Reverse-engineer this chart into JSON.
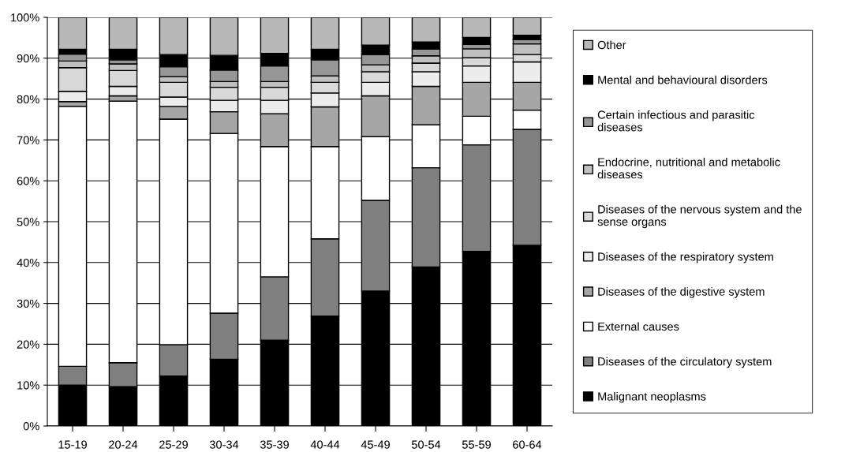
{
  "chart_data": {
    "type": "bar",
    "stacked": true,
    "categories": [
      "15-19",
      "20-24",
      "25-29",
      "30-34",
      "35-39",
      "40-44",
      "45-49",
      "50-54",
      "55-59",
      "60-64"
    ],
    "series": [
      {
        "name": "Malignant neoplasms",
        "color": "#000000",
        "values": [
          10.0,
          9.6,
          12.2,
          16.3,
          21.0,
          26.9,
          33.0,
          38.9,
          42.7,
          44.2
        ]
      },
      {
        "name": "Diseases of the circulatory system",
        "color": "#808080",
        "values": [
          4.6,
          5.9,
          7.7,
          11.3,
          15.5,
          18.9,
          22.2,
          24.3,
          26.1,
          28.4
        ]
      },
      {
        "name": "External causes",
        "color": "#ffffff",
        "values": [
          63.6,
          64.0,
          55.2,
          44.0,
          31.9,
          22.6,
          15.6,
          10.5,
          7.0,
          4.7
        ]
      },
      {
        "name": "Diseases of the digestive system",
        "color": "#a6a6a6",
        "values": [
          1.2,
          1.3,
          3.1,
          5.3,
          8.0,
          9.7,
          10.0,
          9.4,
          8.3,
          6.8
        ]
      },
      {
        "name": "Diseases of the respiratory system",
        "color": "#ececec",
        "values": [
          2.5,
          2.3,
          2.3,
          2.8,
          3.3,
          3.4,
          3.3,
          3.6,
          4.0,
          5.0
        ]
      },
      {
        "name": "Diseases of the nervous system and the sense organs",
        "color": "#d9d9d9",
        "values": [
          5.8,
          3.9,
          3.6,
          3.2,
          3.2,
          2.6,
          2.6,
          2.1,
          2.0,
          1.8
        ]
      },
      {
        "name": "Endocrine, nutritional and metabolic diseases",
        "color": "#c0c0c0",
        "values": [
          1.6,
          1.6,
          1.4,
          1.4,
          1.4,
          1.6,
          1.7,
          1.8,
          2.2,
          2.6
        ]
      },
      {
        "name": "Certain infectious and parasitic diseases",
        "color": "#969696",
        "values": [
          1.7,
          1.0,
          2.4,
          2.8,
          3.8,
          3.9,
          2.5,
          1.6,
          1.1,
          1.1
        ]
      },
      {
        "name": "Mental and behavioural disorders",
        "color": "#000000",
        "values": [
          1.2,
          2.6,
          3.0,
          3.6,
          3.1,
          2.6,
          2.3,
          1.8,
          1.7,
          1.0
        ]
      },
      {
        "name": "Other",
        "color": "#b8b8b8",
        "values": [
          7.8,
          7.8,
          9.1,
          9.3,
          8.8,
          7.8,
          6.8,
          6.0,
          4.9,
          4.4
        ]
      }
    ],
    "ylim": [
      0,
      100
    ],
    "yticks": [
      {
        "value": 0,
        "label": "0%"
      },
      {
        "value": 10,
        "label": "10%"
      },
      {
        "value": 20,
        "label": "20%"
      },
      {
        "value": 30,
        "label": "30%"
      },
      {
        "value": 40,
        "label": "40%"
      },
      {
        "value": 50,
        "label": "50%"
      },
      {
        "value": 60,
        "label": "60%"
      },
      {
        "value": 70,
        "label": "70%"
      },
      {
        "value": 80,
        "label": "80%"
      },
      {
        "value": 90,
        "label": "90%"
      },
      {
        "value": 100,
        "label": "100%"
      }
    ],
    "grid": "y",
    "legend": "right"
  }
}
